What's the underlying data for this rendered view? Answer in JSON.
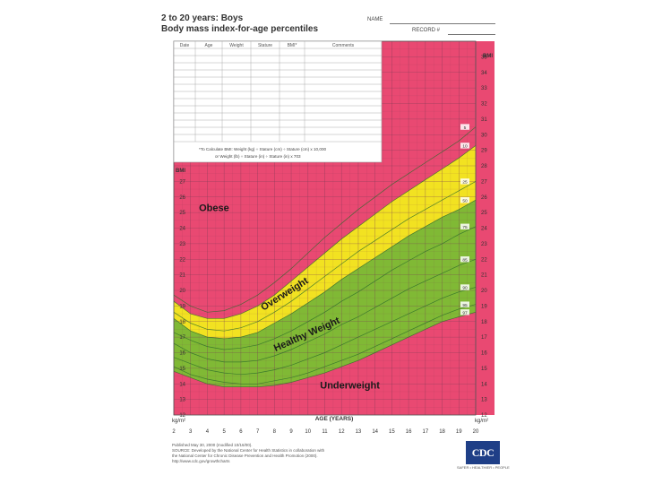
{
  "header": {
    "title_line1": "2 to 20 years: Boys",
    "title_line2": "Body mass index-for-age percentiles",
    "name_label": "NAME",
    "record_label": "RECORD #"
  },
  "table": {
    "columns": [
      "Date",
      "Age",
      "Weight",
      "Stature",
      "BMI*",
      "Comments"
    ]
  },
  "formula": {
    "line1": "*To Calculate BMI: Weight (kg) ÷ Stature (cm) ÷ Stature (cm) x 10,000",
    "line2": "or Weight (lb) ÷ Stature (in) ÷ Stature (in) x 703"
  },
  "footer": {
    "published": "Published May 30, 2000 (modified 10/16/00).",
    "source1": "SOURCE: Developed by the National Center for Health Statistics in collaboration with",
    "source2": "the National Center for Chronic Disease Prevention and Health Promotion (2000).",
    "url": "http://www.cdc.gov/growthcharts",
    "logo": "CDC",
    "tagline": "SAFER • HEALTHIER • PEOPLE"
  },
  "colors": {
    "obese": "#e94972",
    "overweight": "#f2e221",
    "healthy": "#80b935",
    "underweight": "#e94972",
    "grid": "#7a3a55",
    "percentile_line": "#2a6b2a"
  },
  "chart_data": {
    "type": "area",
    "title": "Body mass index-for-age percentiles",
    "xlabel": "AGE (YEARS)",
    "ylabel_left": "BMI",
    "ylabel_right": "BMI",
    "unit_left": "kg/m²",
    "unit_right": "kg/m²",
    "xlim": [
      2,
      20
    ],
    "ylim": [
      12,
      36
    ],
    "x_ticks": [
      2,
      3,
      4,
      5,
      6,
      7,
      8,
      9,
      10,
      11,
      12,
      13,
      14,
      15,
      16,
      17,
      18,
      19,
      20
    ],
    "y_ticks_right": [
      12,
      13,
      14,
      15,
      16,
      17,
      18,
      19,
      20,
      21,
      22,
      23,
      24,
      25,
      26,
      27,
      28,
      29,
      30,
      31,
      32,
      33,
      34,
      35
    ],
    "y_ticks_left": [
      12,
      13,
      14,
      15,
      16,
      17,
      18,
      19,
      20,
      21,
      22,
      23,
      24,
      25,
      26,
      27
    ],
    "age": [
      2,
      3,
      4,
      5,
      6,
      7,
      8,
      9,
      10,
      11,
      12,
      13,
      14,
      15,
      16,
      17,
      18,
      19,
      20
    ],
    "series": [
      {
        "name": "5th",
        "values": [
          14.8,
          14.4,
          14.0,
          13.8,
          13.8,
          13.8,
          13.9,
          14.1,
          14.4,
          14.7,
          15.1,
          15.5,
          16.0,
          16.5,
          17.0,
          17.5,
          18.0,
          18.3,
          18.6
        ]
      },
      {
        "name": "10th",
        "values": [
          15.1,
          14.6,
          14.3,
          14.1,
          14.0,
          14.0,
          14.2,
          14.4,
          14.7,
          15.1,
          15.5,
          15.9,
          16.4,
          16.9,
          17.4,
          17.9,
          18.4,
          18.8,
          19.1
        ]
      },
      {
        "name": "25th",
        "values": [
          15.7,
          15.3,
          14.9,
          14.7,
          14.6,
          14.7,
          14.9,
          15.2,
          15.6,
          16.0,
          16.5,
          17.0,
          17.5,
          18.0,
          18.5,
          19.0,
          19.5,
          19.9,
          20.2
        ]
      },
      {
        "name": "50th",
        "values": [
          16.6,
          16.0,
          15.6,
          15.4,
          15.4,
          15.5,
          15.8,
          16.2,
          16.7,
          17.2,
          17.8,
          18.3,
          18.9,
          19.5,
          20.1,
          20.6,
          21.1,
          21.6,
          22.0
        ]
      },
      {
        "name": "75th",
        "values": [
          17.3,
          16.8,
          16.4,
          16.2,
          16.3,
          16.5,
          16.9,
          17.4,
          18.0,
          18.6,
          19.3,
          19.9,
          20.6,
          21.3,
          21.9,
          22.5,
          23.0,
          23.6,
          24.1
        ]
      },
      {
        "name": "85th",
        "values": [
          18.2,
          17.4,
          17.0,
          16.9,
          17.0,
          17.3,
          17.9,
          18.5,
          19.2,
          19.9,
          20.7,
          21.4,
          22.1,
          22.8,
          23.5,
          24.1,
          24.7,
          25.2,
          25.8
        ]
      },
      {
        "name": "90th",
        "values": [
          18.6,
          17.9,
          17.5,
          17.4,
          17.6,
          18.0,
          18.6,
          19.3,
          20.1,
          20.9,
          21.7,
          22.5,
          23.2,
          23.9,
          24.6,
          25.2,
          25.8,
          26.4,
          27.0
        ]
      },
      {
        "name": "95th",
        "values": [
          19.3,
          18.5,
          18.2,
          18.2,
          18.5,
          19.0,
          19.7,
          20.6,
          21.5,
          22.4,
          23.3,
          24.1,
          24.9,
          25.7,
          26.4,
          27.1,
          27.8,
          28.5,
          29.3
        ]
      },
      {
        "name": "97th",
        "values": [
          19.7,
          19.0,
          18.6,
          18.7,
          19.1,
          19.7,
          20.5,
          21.4,
          22.4,
          23.4,
          24.3,
          25.2,
          26.0,
          26.8,
          27.5,
          28.2,
          28.9,
          29.6,
          30.5
        ]
      }
    ],
    "percentile_tags": [
      "97",
      "95",
      "90",
      "85",
      "75",
      "50",
      "25",
      "10",
      "5"
    ],
    "zones": [
      {
        "name": "Obese",
        "label": "Obese",
        "age": 4.4,
        "bmi": 25.1,
        "angle": 0
      },
      {
        "name": "Overweight",
        "label": "Overweight",
        "age": 8.7,
        "bmi": 19.6,
        "angle": -32
      },
      {
        "name": "Healthy Weight",
        "label": "Healthy Weight",
        "age": 10.0,
        "bmi": 17.0,
        "angle": -24
      },
      {
        "name": "Underweight",
        "label": "Underweight",
        "age": 12.5,
        "bmi": 13.7,
        "angle": 0
      }
    ]
  }
}
